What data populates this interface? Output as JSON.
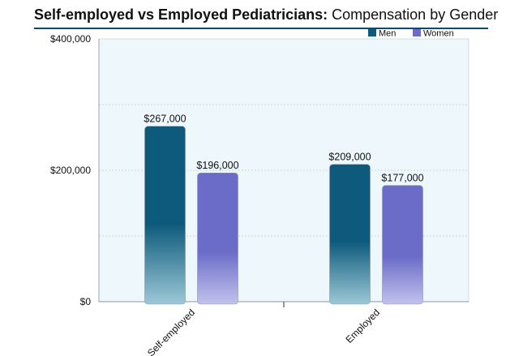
{
  "title_bold": "Self-employed vs Employed Pediatricians:",
  "title_rest": " Compensation by Gender",
  "colors": {
    "men": "#0d5a7c",
    "women": "#6a6cc8",
    "plot_bg": "#eef7fc",
    "grid": "#c8d4de"
  },
  "chart_data": {
    "type": "bar",
    "title": "Self-employed vs Employed Pediatricians: Compensation by Gender",
    "categories": [
      "Self-employed",
      "Employed"
    ],
    "series": [
      {
        "name": "Men",
        "values": [
          267000,
          209000
        ],
        "labels": [
          "$267,000",
          "$209,000"
        ]
      },
      {
        "name": "Women",
        "values": [
          196000,
          177000
        ],
        "labels": [
          "$196,000",
          "$177,000"
        ]
      }
    ],
    "ylim": [
      0,
      400000
    ],
    "yticks": [
      0,
      200000,
      400000
    ],
    "ytick_labels": [
      "$0",
      "$200,000",
      "$400,000"
    ],
    "grid": true,
    "legend_position": "top-right"
  }
}
